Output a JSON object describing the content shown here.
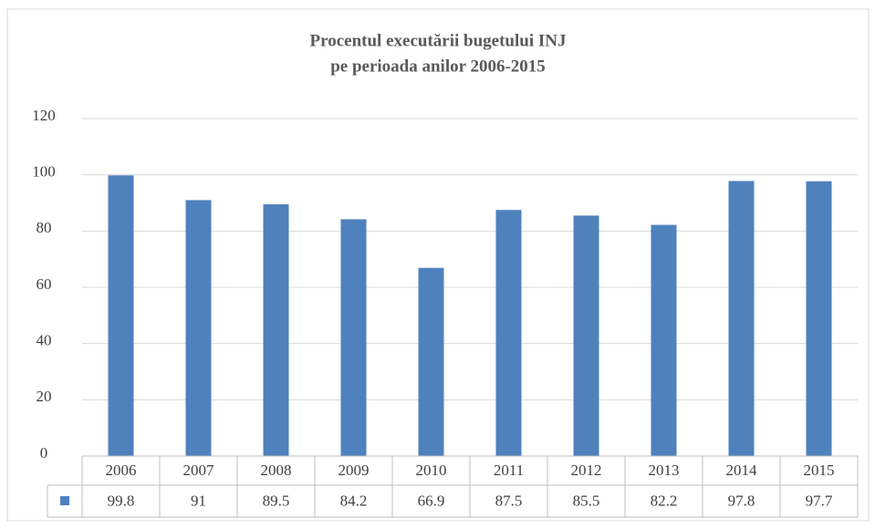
{
  "chart_data": {
    "type": "bar",
    "title": [
      "Procentul executării bugetului INJ",
      "pe perioada anilor 2006-2015"
    ],
    "categories": [
      "2006",
      "2007",
      "2008",
      "2009",
      "2010",
      "2011",
      "2012",
      "2013",
      "2014",
      "2015"
    ],
    "values": [
      99.8,
      91,
      89.5,
      84.2,
      66.9,
      87.5,
      85.5,
      82.2,
      97.8,
      97.7
    ],
    "color": "#4f81bd",
    "ylim": [
      0,
      120
    ],
    "yticks": [
      0,
      20,
      40,
      60,
      80,
      100,
      120
    ],
    "grid": true,
    "data_table": true
  }
}
